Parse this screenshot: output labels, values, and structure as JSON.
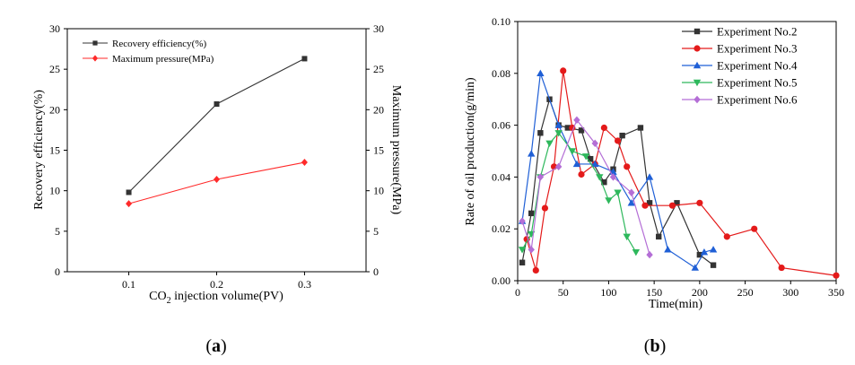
{
  "panels": {
    "a": {
      "caption_open": "(",
      "caption_letter": "a",
      "caption_close": ")"
    },
    "b": {
      "caption_open": "(",
      "caption_letter": "b",
      "caption_close": ")"
    }
  },
  "chart_data": [
    {
      "type": "line",
      "id": "a",
      "title": "",
      "xlabel_parts": [
        "CO",
        "2",
        " injection volume(PV)"
      ],
      "xlabel": "CO2 injection volume(PV)",
      "ylabel": "Recovery efficiency(%)",
      "y2label": "Maximum pressure(MPa)",
      "x": [
        0.1,
        0.2,
        0.3
      ],
      "xlim": [
        0.03,
        0.37
      ],
      "xticks": [
        "0.1",
        "0.2",
        "0.3"
      ],
      "ylim": [
        0,
        30
      ],
      "yticks": [
        "0",
        "5",
        "10",
        "15",
        "20",
        "25",
        "30"
      ],
      "y2lim": [
        0,
        30
      ],
      "y2ticks": [
        "0",
        "5",
        "10",
        "15",
        "20",
        "25",
        "30"
      ],
      "grid": false,
      "legend_position": "top-left",
      "series": [
        {
          "name": "Recovery efficiency(%)",
          "axis": "left",
          "color": "#333333",
          "marker": "square",
          "values": [
            9.8,
            20.7,
            26.3
          ]
        },
        {
          "name": "Maximum pressure(MPa)",
          "axis": "right",
          "color": "#ff2a2a",
          "marker": "diamond",
          "values": [
            8.4,
            11.4,
            13.5
          ]
        }
      ]
    },
    {
      "type": "line",
      "id": "b",
      "title": "",
      "xlabel": "Time(min)",
      "ylabel": "Rate of oil production(g/min)",
      "xlim": [
        0,
        350
      ],
      "xticks": [
        "0",
        "50",
        "100",
        "150",
        "200",
        "250",
        "300",
        "350"
      ],
      "ylim": [
        0,
        0.1
      ],
      "yticks": [
        "0.00",
        "0.02",
        "0.04",
        "0.06",
        "0.08",
        "0.10"
      ],
      "grid": false,
      "legend_position": "top-right",
      "series": [
        {
          "name": "Experiment No.2",
          "color": "#333333",
          "marker": "square",
          "x": [
            5,
            15,
            25,
            35,
            45,
            55,
            70,
            80,
            95,
            105,
            115,
            135,
            145,
            155,
            175,
            200,
            215
          ],
          "y": [
            0.007,
            0.026,
            0.057,
            0.07,
            0.06,
            0.059,
            0.058,
            0.047,
            0.038,
            0.043,
            0.056,
            0.059,
            0.03,
            0.017,
            0.03,
            0.01,
            0.006
          ]
        },
        {
          "name": "Experiment No.3",
          "color": "#e41a1a",
          "marker": "circle",
          "x": [
            10,
            20,
            30,
            40,
            50,
            60,
            70,
            85,
            95,
            110,
            120,
            140,
            170,
            200,
            230,
            260,
            290,
            350
          ],
          "y": [
            0.016,
            0.004,
            0.028,
            0.044,
            0.081,
            0.059,
            0.041,
            0.045,
            0.059,
            0.054,
            0.044,
            0.029,
            0.029,
            0.03,
            0.017,
            0.02,
            0.005,
            0.002
          ]
        },
        {
          "name": "Experiment No.4",
          "color": "#1f5fd6",
          "marker": "triangle-up",
          "x": [
            5,
            15,
            25,
            45,
            65,
            85,
            105,
            125,
            145,
            165,
            195,
            205,
            215
          ],
          "y": [
            0.023,
            0.049,
            0.08,
            0.06,
            0.045,
            0.045,
            0.042,
            0.03,
            0.04,
            0.012,
            0.005,
            0.011,
            0.012
          ]
        },
        {
          "name": "Experiment No.5",
          "color": "#2eb85c",
          "marker": "triangle-down",
          "x": [
            5,
            15,
            25,
            35,
            45,
            60,
            75,
            90,
            100,
            110,
            120,
            130
          ],
          "y": [
            0.012,
            0.018,
            0.04,
            0.053,
            0.057,
            0.05,
            0.048,
            0.04,
            0.031,
            0.034,
            0.017,
            0.011
          ]
        },
        {
          "name": "Experiment No.6",
          "color": "#b46ed6",
          "marker": "diamond",
          "x": [
            5,
            15,
            25,
            45,
            65,
            85,
            105,
            125,
            145
          ],
          "y": [
            0.023,
            0.012,
            0.04,
            0.044,
            0.062,
            0.053,
            0.04,
            0.034,
            0.01
          ]
        }
      ]
    }
  ]
}
